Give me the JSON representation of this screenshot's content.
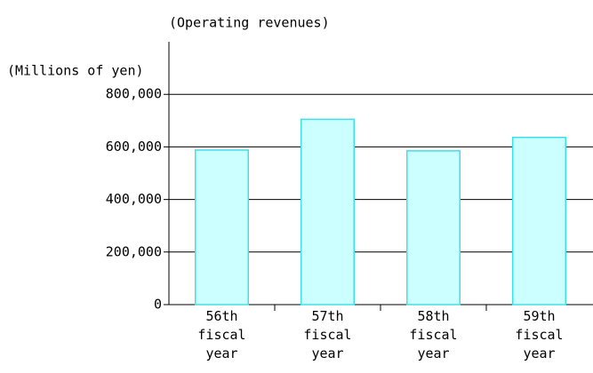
{
  "chart_data": {
    "type": "bar",
    "title": "(Operating revenues)",
    "y_label": "(Millions of yen)",
    "categories": [
      "56th fiscal year",
      "57th fiscal year",
      "58th fiscal year",
      "59th fiscal year"
    ],
    "values": [
      588000,
      705000,
      585000,
      636000
    ],
    "color": "#ccffff",
    "edge_color": "#40e0e8",
    "ylim": [
      0,
      1000000
    ],
    "yticks": [
      0,
      {
        "value": 200000,
        "label": "200,000"
      },
      {
        "value": 400000,
        "label": "400,000"
      },
      {
        "value": 600000,
        "label": "600,000"
      },
      {
        "value": 800000,
        "label": "800,000"
      }
    ],
    "grid": true
  }
}
